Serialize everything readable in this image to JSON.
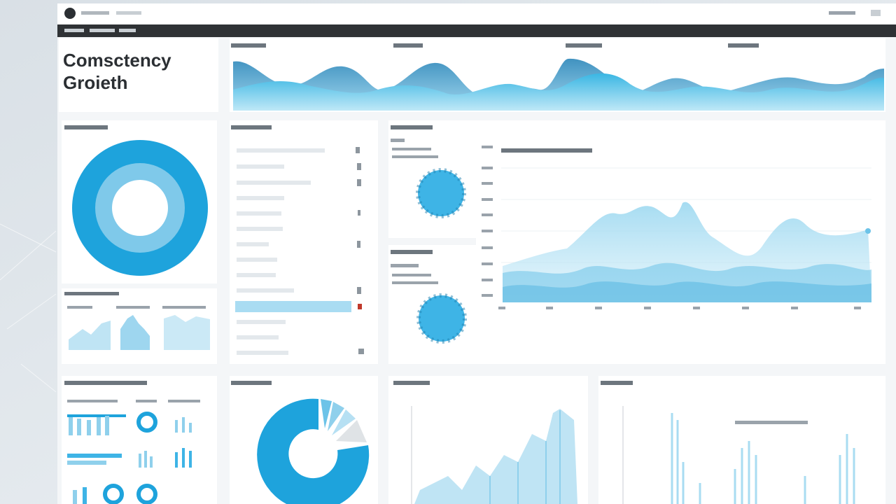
{
  "header": {
    "title_line1": "Comsctency",
    "title_line2": "Groieth"
  }
}
